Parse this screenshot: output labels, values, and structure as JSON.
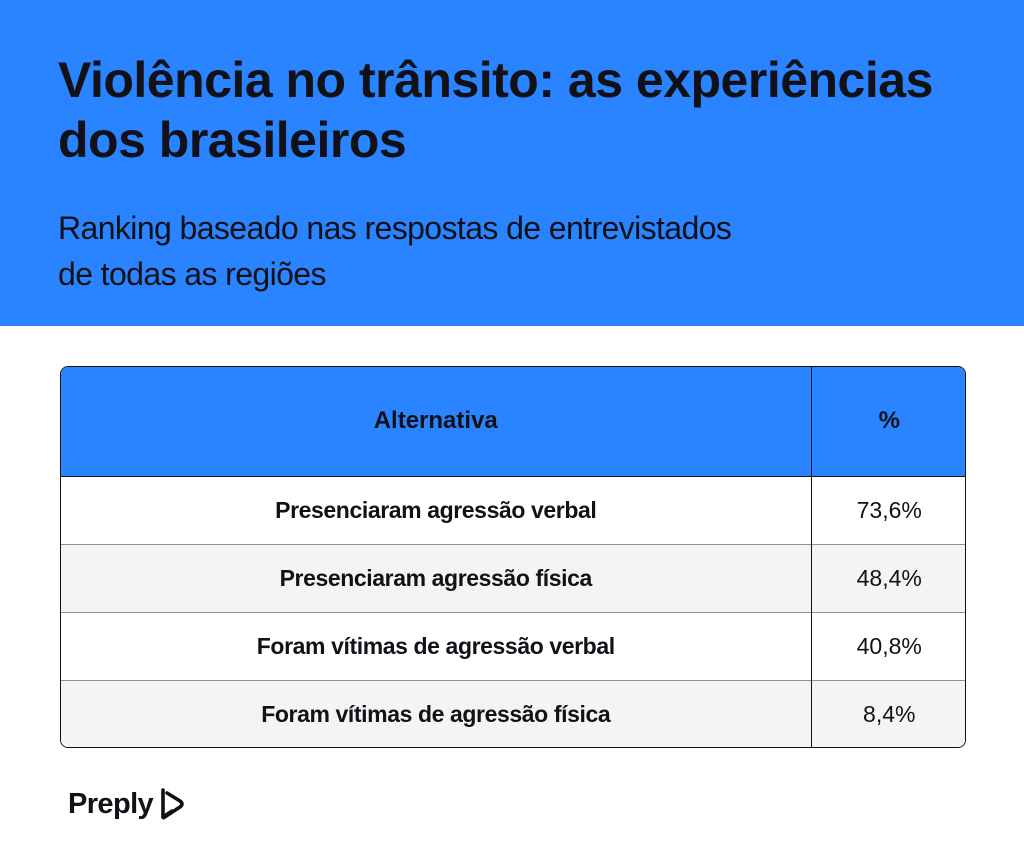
{
  "header": {
    "title": "Violência no trânsito: as experiências dos brasileiros",
    "subtitle": "Ranking baseado nas respostas de entrevistados de todas as regiões"
  },
  "chart_data": {
    "type": "table",
    "columns": [
      "Alternativa",
      "%"
    ],
    "rows": [
      {
        "label": "Presenciaram agressão verbal",
        "value": "73,6%"
      },
      {
        "label": "Presenciaram agressão física",
        "value": "48,4%"
      },
      {
        "label": "Foram vítimas de agressão verbal",
        "value": "40,8%"
      },
      {
        "label": "Foram vítimas de agressão física",
        "value": "8,4%"
      }
    ]
  },
  "brand": {
    "name": "Preply",
    "icon": "preply-logo-icon"
  },
  "colors": {
    "header_bg": "#2a83ff",
    "text": "#121117",
    "row_alt": "#f4f4f5"
  }
}
